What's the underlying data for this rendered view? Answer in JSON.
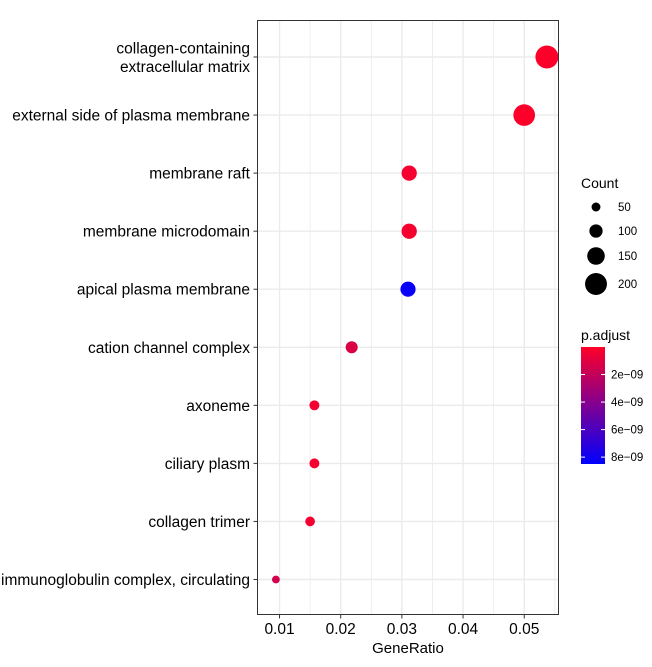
{
  "chart_data": {
    "type": "scatter",
    "title": "",
    "xlabel": "GeneRatio",
    "ylabel": "",
    "xlim": [
      0.0064,
      0.0556
    ],
    "x_ticks": [
      0.01,
      0.02,
      0.03,
      0.04,
      0.05
    ],
    "x_tick_labels": [
      "0.01",
      "0.02",
      "0.03",
      "0.04",
      "0.05"
    ],
    "grid": true,
    "categories": [
      "collagen-containing\nextracellular matrix",
      "external side of plasma membrane",
      "membrane raft",
      "membrane microdomain",
      "apical plasma membrane",
      "cation channel complex",
      "axoneme",
      "ciliary plasm",
      "collagen trimer",
      "immunoglobulin complex, circulating"
    ],
    "points": [
      {
        "term": "collagen-containing\nextracellular matrix",
        "gene_ratio": 0.0537,
        "count": 212,
        "p_adjust": 1e-10
      },
      {
        "term": "external side of plasma membrane",
        "gene_ratio": 0.05,
        "count": 197,
        "p_adjust": 1e-10
      },
      {
        "term": "membrane raft",
        "gene_ratio": 0.0312,
        "count": 123,
        "p_adjust": 3e-10
      },
      {
        "term": "membrane microdomain",
        "gene_ratio": 0.0312,
        "count": 123,
        "p_adjust": 3e-10
      },
      {
        "term": "apical plasma membrane",
        "gene_ratio": 0.031,
        "count": 122,
        "p_adjust": 8.2e-09
      },
      {
        "term": "cation channel complex",
        "gene_ratio": 0.0218,
        "count": 86,
        "p_adjust": 1.2e-09
      },
      {
        "term": "axoneme",
        "gene_ratio": 0.0157,
        "count": 62,
        "p_adjust": 3e-10
      },
      {
        "term": "ciliary plasm",
        "gene_ratio": 0.0157,
        "count": 62,
        "p_adjust": 3e-10
      },
      {
        "term": "collagen trimer",
        "gene_ratio": 0.015,
        "count": 59,
        "p_adjust": 4e-10
      },
      {
        "term": "immunoglobulin complex, circulating",
        "gene_ratio": 0.0094,
        "count": 37,
        "p_adjust": 1.5e-09
      }
    ],
    "size_legend": {
      "title": "Count",
      "values": [
        50,
        100,
        150,
        200
      ],
      "labels": [
        "50",
        "100",
        "150",
        "200"
      ]
    },
    "color_legend": {
      "title": "p.adjust",
      "domain": [
        0,
        8.5e-09
      ],
      "ticks": [
        2e-09,
        4e-09,
        6e-09,
        8e-09
      ],
      "tick_labels": [
        "2e−09",
        "4e−09",
        "6e−09",
        "8e−09"
      ],
      "low_color": "#ff0027",
      "high_color": "#0000ff"
    },
    "colors": {
      "panel_border": "#333333",
      "grid": "#ebebeb",
      "text": "#000000"
    },
    "legend_position": "right"
  }
}
